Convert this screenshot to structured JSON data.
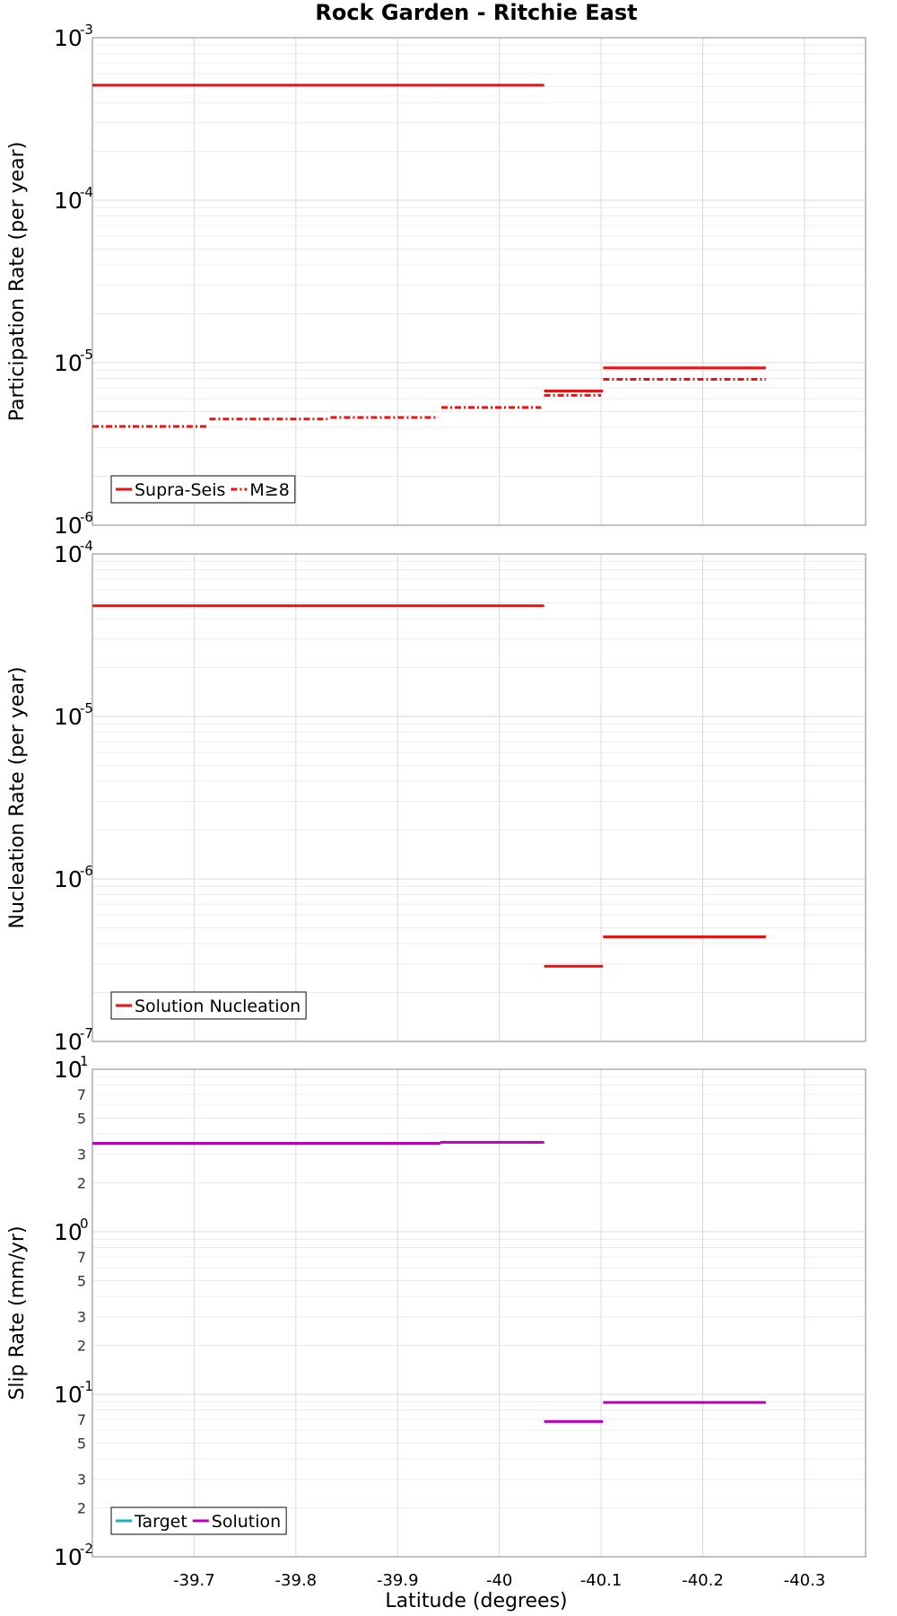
{
  "chart_data": {
    "title": "Rock Garden - Ritchie East",
    "xlabel": "Latitude (degrees)",
    "x_ticks": [
      "-39.7",
      "-39.8",
      "-39.9",
      "-40",
      "-40.1",
      "-40.2",
      "-40.3"
    ],
    "x_tick_values": [
      -39.7,
      -39.8,
      -39.9,
      -40.0,
      -40.1,
      -40.2,
      -40.3
    ],
    "xlim": [
      -39.6,
      -40.36
    ],
    "x_reversed": true,
    "grid": true,
    "panels": [
      {
        "type": "line",
        "ylabel": "Participation Rate (per year)",
        "yscale": "log",
        "ylim": [
          1e-06,
          0.001
        ],
        "minor_tick_labels": false,
        "legend_position": "bottom-left",
        "series": [
          {
            "name": "Supra-Seis",
            "color": "#ee1111",
            "dash": "solid",
            "segments": [
              {
                "x": [
                  -39.6,
                  -39.712
                ],
                "y": 0.00051
              },
              {
                "x": [
                  -39.712,
                  -39.831
                ],
                "y": 0.00051
              },
              {
                "x": [
                  -39.831,
                  -39.942
                ],
                "y": 0.00051
              },
              {
                "x": [
                  -39.942,
                  -40.044
                ],
                "y": 0.00051
              },
              {
                "x": [
                  -40.044,
                  -40.102
                ],
                "y": 6.7e-06
              },
              {
                "x": [
                  -40.102,
                  -40.203
                ],
                "y": 9.3e-06
              },
              {
                "x": [
                  -40.203,
                  -40.262
                ],
                "y": 9.3e-06
              }
            ]
          },
          {
            "name": "M≥8",
            "color": "#ee1111",
            "dash": "dashdot",
            "segments": [
              {
                "x": [
                  -39.6,
                  -39.712
                ],
                "y": 4.05e-06
              },
              {
                "x": [
                  -39.715,
                  -39.831
                ],
                "y": 4.5e-06
              },
              {
                "x": [
                  -39.834,
                  -39.94
                ],
                "y": 4.6e-06
              },
              {
                "x": [
                  -39.943,
                  -40.041
                ],
                "y": 5.3e-06
              },
              {
                "x": [
                  -40.044,
                  -40.1
                ],
                "y": 6.3e-06
              },
              {
                "x": [
                  -40.102,
                  -40.262
                ],
                "y": 7.9e-06
              }
            ]
          }
        ]
      },
      {
        "type": "line",
        "ylabel": "Nucleation Rate (per year)",
        "yscale": "log",
        "ylim": [
          1e-07,
          0.0001
        ],
        "minor_tick_labels": false,
        "legend_position": "bottom-left",
        "series": [
          {
            "name": "Solution Nucleation",
            "color": "#ee1111",
            "dash": "solid",
            "segments": [
              {
                "x": [
                  -39.6,
                  -39.712
                ],
                "y": 4.8e-05
              },
              {
                "x": [
                  -39.712,
                  -39.831
                ],
                "y": 4.8e-05
              },
              {
                "x": [
                  -39.831,
                  -39.942
                ],
                "y": 4.8e-05
              },
              {
                "x": [
                  -39.942,
                  -40.044
                ],
                "y": 4.8e-05
              },
              {
                "x": [
                  -40.044,
                  -40.102
                ],
                "y": 2.9e-07
              },
              {
                "x": [
                  -40.102,
                  -40.203
                ],
                "y": 4.4e-07
              },
              {
                "x": [
                  -40.203,
                  -40.262
                ],
                "y": 4.4e-07
              }
            ]
          }
        ]
      },
      {
        "type": "line",
        "ylabel": "Slip Rate (mm/yr)",
        "yscale": "log",
        "ylim": [
          0.01,
          10
        ],
        "minor_tick_labels": true,
        "minor_tick_values": [
          2,
          3,
          5,
          7
        ],
        "legend_position": "bottom-left",
        "series": [
          {
            "name": "Target",
            "color": "#17b3b3",
            "dash": "solid",
            "segments": []
          },
          {
            "name": "Solution",
            "color": "#bb00bb",
            "dash": "solid",
            "segments": [
              {
                "x": [
                  -39.6,
                  -39.712
                ],
                "y": 3.5
              },
              {
                "x": [
                  -39.712,
                  -39.831
                ],
                "y": 3.5
              },
              {
                "x": [
                  -39.831,
                  -39.942
                ],
                "y": 3.5
              },
              {
                "x": [
                  -39.942,
                  -40.044
                ],
                "y": 3.55
              },
              {
                "x": [
                  -40.044,
                  -40.102
                ],
                "y": 0.068
              },
              {
                "x": [
                  -40.102,
                  -40.203
                ],
                "y": 0.089
              },
              {
                "x": [
                  -40.203,
                  -40.262
                ],
                "y": 0.089
              }
            ]
          }
        ]
      }
    ]
  }
}
